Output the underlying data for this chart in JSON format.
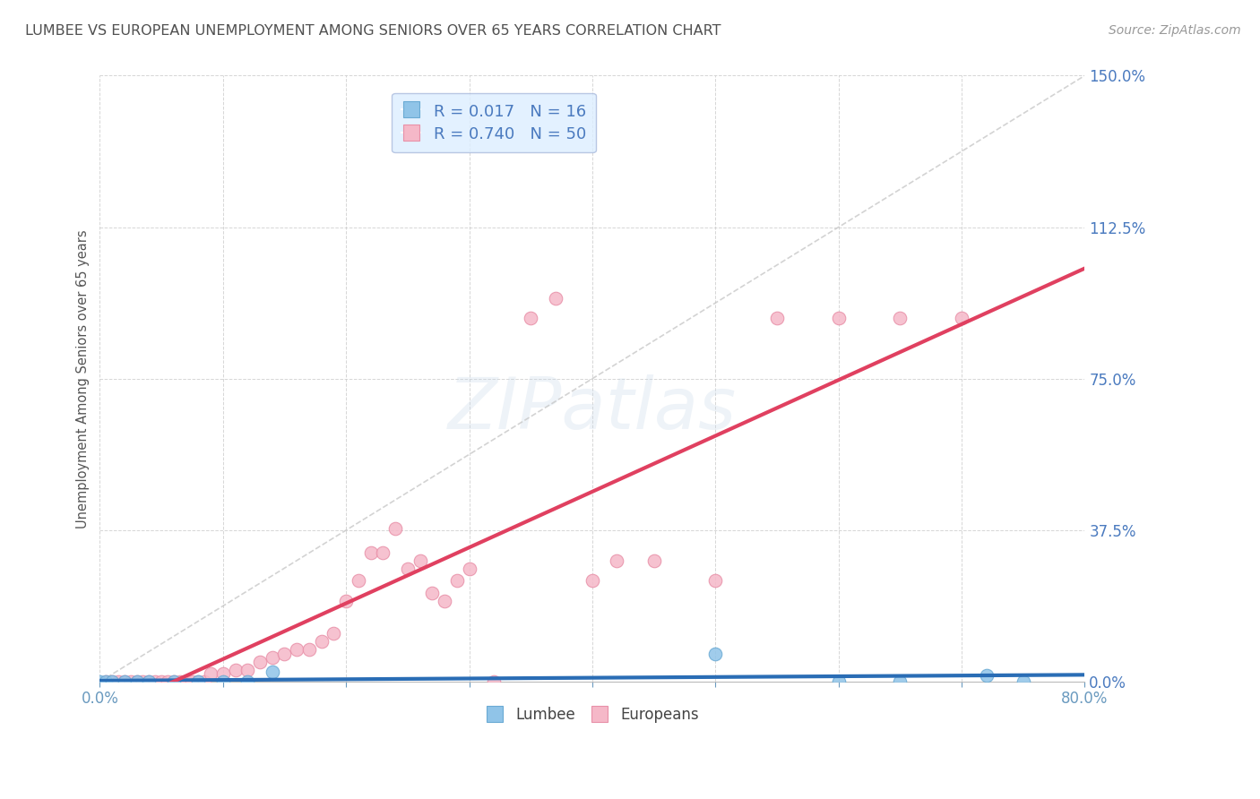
{
  "title": "LUMBEE VS EUROPEAN UNEMPLOYMENT AMONG SENIORS OVER 65 YEARS CORRELATION CHART",
  "source": "Source: ZipAtlas.com",
  "ylabel": "Unemployment Among Seniors over 65 years",
  "xlim": [
    0.0,
    0.8
  ],
  "ylim": [
    0.0,
    1.5
  ],
  "xticks": [
    0.0,
    0.1,
    0.2,
    0.3,
    0.4,
    0.5,
    0.6,
    0.7,
    0.8
  ],
  "yticks": [
    0.0,
    0.375,
    0.75,
    1.125,
    1.5
  ],
  "ytick_labels": [
    "0.0%",
    "37.5%",
    "75.0%",
    "112.5%",
    "150.0%"
  ],
  "grid_color": "#cccccc",
  "background_color": "#ffffff",
  "lumbee_color": "#90c4e8",
  "european_color": "#f5b8c8",
  "lumbee_edge_color": "#6aaad4",
  "european_edge_color": "#e890a8",
  "lumbee_R": 0.017,
  "lumbee_N": 16,
  "european_R": 0.74,
  "european_N": 50,
  "trend_line_color_lumbee": "#2a6db5",
  "trend_line_color_european": "#e04060",
  "diagonal_line_color": "#c8c8c8",
  "lumbee_points": [
    [
      0.0,
      0.0
    ],
    [
      0.005,
      0.0
    ],
    [
      0.01,
      0.0
    ],
    [
      0.02,
      0.0
    ],
    [
      0.03,
      0.0
    ],
    [
      0.04,
      0.0
    ],
    [
      0.06,
      0.0
    ],
    [
      0.08,
      0.0
    ],
    [
      0.1,
      0.0
    ],
    [
      0.12,
      0.0
    ],
    [
      0.14,
      0.025
    ],
    [
      0.5,
      0.07
    ],
    [
      0.6,
      0.0
    ],
    [
      0.65,
      0.0
    ],
    [
      0.72,
      0.015
    ],
    [
      0.75,
      0.0
    ]
  ],
  "european_points": [
    [
      0.005,
      0.0
    ],
    [
      0.01,
      0.0
    ],
    [
      0.015,
      0.0
    ],
    [
      0.02,
      0.0
    ],
    [
      0.025,
      0.0
    ],
    [
      0.03,
      0.0
    ],
    [
      0.035,
      0.0
    ],
    [
      0.04,
      0.0
    ],
    [
      0.045,
      0.0
    ],
    [
      0.05,
      0.0
    ],
    [
      0.055,
      0.0
    ],
    [
      0.06,
      0.0
    ],
    [
      0.065,
      0.0
    ],
    [
      0.07,
      0.0
    ],
    [
      0.075,
      0.0
    ],
    [
      0.08,
      0.0
    ],
    [
      0.085,
      0.0
    ],
    [
      0.09,
      0.02
    ],
    [
      0.1,
      0.02
    ],
    [
      0.11,
      0.03
    ],
    [
      0.12,
      0.03
    ],
    [
      0.13,
      0.05
    ],
    [
      0.14,
      0.06
    ],
    [
      0.15,
      0.07
    ],
    [
      0.16,
      0.08
    ],
    [
      0.17,
      0.08
    ],
    [
      0.18,
      0.1
    ],
    [
      0.19,
      0.12
    ],
    [
      0.2,
      0.2
    ],
    [
      0.21,
      0.25
    ],
    [
      0.22,
      0.32
    ],
    [
      0.23,
      0.32
    ],
    [
      0.24,
      0.38
    ],
    [
      0.25,
      0.28
    ],
    [
      0.26,
      0.3
    ],
    [
      0.27,
      0.22
    ],
    [
      0.28,
      0.2
    ],
    [
      0.29,
      0.25
    ],
    [
      0.3,
      0.28
    ],
    [
      0.32,
      0.0
    ],
    [
      0.35,
      0.9
    ],
    [
      0.37,
      0.95
    ],
    [
      0.4,
      0.25
    ],
    [
      0.42,
      0.3
    ],
    [
      0.45,
      0.3
    ],
    [
      0.5,
      0.25
    ],
    [
      0.55,
      0.9
    ],
    [
      0.6,
      0.9
    ],
    [
      0.65,
      0.9
    ],
    [
      0.7,
      0.9
    ]
  ],
  "watermark": "ZIPatlas",
  "legend_box_color": "#ddeeff",
  "legend_border_color": "#aabbdd",
  "title_color": "#505050",
  "axis_tick_color": "#6a9abf",
  "right_tick_color": "#4a7abf"
}
